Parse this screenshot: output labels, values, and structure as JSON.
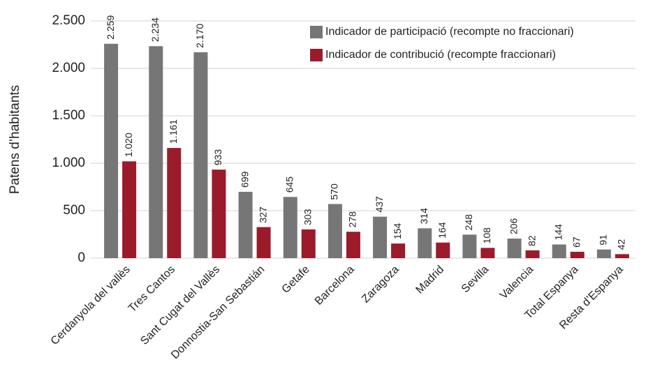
{
  "chart_data": {
    "type": "bar",
    "y_label": "Patens d’habitants",
    "categories": [
      "Cerdanyola del vallès",
      "Tres Cantos",
      "Sant Cugat del Vallès",
      "Donnostia-San Sebastián",
      "Getafe",
      "Barcelona",
      "Zaragoza",
      "Madrid",
      "Sevilla",
      "Valencia",
      "Total Espanya",
      "Resta d’Espanya"
    ],
    "series": [
      {
        "name": "Indicador de participació (recompte no fraccionari)",
        "color": "#767676",
        "values": [
          2259,
          2234,
          2170,
          699,
          645,
          570,
          437,
          314,
          248,
          206,
          144,
          91
        ],
        "value_labels": [
          "2.259",
          "2.234",
          "2.170",
          "699",
          "645",
          "570",
          "437",
          "314",
          "248",
          "206",
          "144",
          "91"
        ]
      },
      {
        "name": "Indicador de contribució (recompte fraccionari)",
        "color": "#9b1b2b",
        "values": [
          1020,
          1161,
          933,
          327,
          303,
          278,
          154,
          164,
          108,
          82,
          67,
          42
        ],
        "value_labels": [
          "1.020",
          "1.161",
          "933",
          "327",
          "303",
          "278",
          "154",
          "164",
          "108",
          "82",
          "67",
          "42"
        ]
      }
    ],
    "ylim": [
      0,
      2500
    ],
    "yticks": [
      0,
      500,
      {
        "value": 1000,
        "label": "1.000"
      },
      {
        "value": 1500,
        "label": "1.500"
      },
      {
        "value": 2000,
        "label": "2.000"
      },
      {
        "value": 2500,
        "label": "2.500"
      }
    ],
    "grid": true,
    "legend": "top-right"
  }
}
